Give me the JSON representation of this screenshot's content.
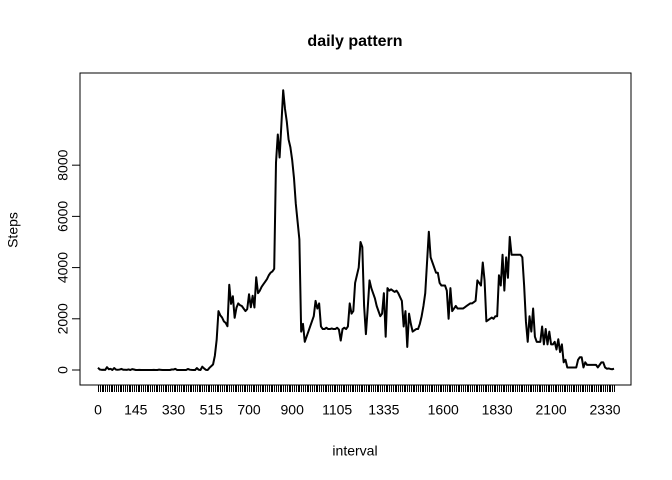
{
  "chart_data": {
    "type": "line",
    "title": "daily pattern",
    "x_label": "interval",
    "y_label": "Steps",
    "categories": [
      "0",
      null,
      null,
      null,
      null,
      null,
      null,
      null,
      null,
      null,
      null,
      null,
      null,
      null,
      null,
      null,
      null,
      null,
      null,
      null,
      null,
      "145",
      null,
      null,
      null,
      null,
      null,
      null,
      null,
      null,
      null,
      null,
      null,
      null,
      null,
      null,
      null,
      null,
      null,
      null,
      null,
      null,
      "330",
      null,
      null,
      null,
      null,
      null,
      null,
      null,
      null,
      null,
      null,
      null,
      null,
      null,
      null,
      null,
      null,
      null,
      null,
      null,
      null,
      "515",
      null,
      null,
      null,
      null,
      null,
      null,
      null,
      null,
      null,
      null,
      null,
      null,
      null,
      null,
      null,
      null,
      null,
      null,
      null,
      null,
      "700",
      null,
      null,
      null,
      null,
      null,
      null,
      null,
      null,
      null,
      null,
      null,
      null,
      null,
      null,
      null,
      null,
      null,
      null,
      null,
      null,
      null,
      null,
      null,
      "900",
      null,
      null,
      null,
      null,
      null,
      null,
      null,
      null,
      null,
      null,
      null,
      null,
      null,
      null,
      null,
      null,
      null,
      null,
      null,
      null,
      null,
      null,
      null,
      null,
      "1105",
      null,
      null,
      null,
      null,
      null,
      null,
      null,
      null,
      null,
      null,
      null,
      null,
      null,
      null,
      null,
      null,
      null,
      null,
      null,
      null,
      null,
      null,
      null,
      null,
      null,
      "1335",
      null,
      null,
      null,
      null,
      null,
      null,
      null,
      null,
      null,
      null,
      null,
      null,
      null,
      null,
      null,
      null,
      null,
      null,
      null,
      null,
      null,
      null,
      null,
      null,
      null,
      null,
      null,
      null,
      null,
      null,
      null,
      null,
      "1600",
      null,
      null,
      null,
      null,
      null,
      null,
      null,
      null,
      null,
      null,
      null,
      null,
      null,
      null,
      null,
      null,
      null,
      null,
      null,
      null,
      null,
      null,
      null,
      null,
      null,
      null,
      null,
      null,
      null,
      "1830",
      null,
      null,
      null,
      null,
      null,
      null,
      null,
      null,
      null,
      null,
      null,
      null,
      null,
      null,
      null,
      null,
      null,
      null,
      null,
      null,
      null,
      null,
      null,
      null,
      null,
      null,
      null,
      null,
      null,
      "2100",
      null,
      null,
      null,
      null,
      null,
      null,
      null,
      null,
      null,
      null,
      null,
      null,
      null,
      null,
      null,
      null,
      null,
      null,
      null,
      null,
      null,
      null,
      null,
      null,
      null,
      null,
      null,
      null,
      null,
      "2330",
      null,
      null,
      null,
      null,
      null
    ],
    "values": [
      91,
      18,
      7,
      8,
      4,
      111,
      28,
      46,
      0,
      78,
      16,
      7,
      17,
      43,
      12,
      9,
      5,
      22,
      0,
      33,
      20,
      0,
      0,
      3,
      0,
      0,
      0,
      0,
      0,
      0,
      0,
      4,
      0,
      0,
      15,
      7,
      0,
      0,
      0,
      0,
      0,
      20,
      18,
      44,
      0,
      0,
      0,
      0,
      0,
      0,
      40,
      12,
      5,
      0,
      0,
      74,
      8,
      0,
      130,
      60,
      7,
      0,
      85,
      150,
      220,
      560,
      1180,
      2300,
      2140,
      2050,
      1900,
      1840,
      1710,
      3330,
      2580,
      2880,
      2040,
      2430,
      2600,
      2530,
      2500,
      2400,
      2300,
      2380,
      2960,
      2450,
      2900,
      2440,
      3620,
      3000,
      3100,
      3250,
      3350,
      3450,
      3550,
      3700,
      3800,
      3850,
      3950,
      8100,
      9200,
      8300,
      9600,
      10927,
      10200,
      9700,
      9000,
      8700,
      8200,
      7500,
      6500,
      5800,
      5100,
      1500,
      1800,
      1100,
      1300,
      1500,
      1700,
      1900,
      2100,
      2700,
      2400,
      2600,
      1700,
      1600,
      1600,
      1650,
      1600,
      1600,
      1620,
      1600,
      1600,
      1650,
      1580,
      1150,
      1600,
      1650,
      1600,
      1700,
      2600,
      2200,
      2300,
      3400,
      3700,
      4000,
      5000,
      4800,
      2500,
      1400,
      2400,
      3500,
      3200,
      3000,
      2800,
      2500,
      2300,
      2100,
      2200,
      3000,
      1300,
      3200,
      3100,
      3150,
      3100,
      3050,
      3100,
      3000,
      2850,
      2700,
      1700,
      2300,
      900,
      2200,
      1800,
      1500,
      1550,
      1600,
      1600,
      1800,
      2100,
      2500,
      3000,
      4200,
      5400,
      4400,
      4200,
      4000,
      3800,
      3800,
      3400,
      3300,
      3300,
      3300,
      3100,
      2000,
      3200,
      2300,
      2400,
      2500,
      2400,
      2400,
      2400,
      2400,
      2450,
      2500,
      2550,
      2600,
      2600,
      2650,
      2700,
      3500,
      3400,
      3300,
      4200,
      3500,
      1900,
      1950,
      2000,
      2050,
      2000,
      2100,
      2100,
      3700,
      3300,
      4500,
      3100,
      4400,
      3600,
      5200,
      4500,
      4500,
      4500,
      4500,
      4500,
      4500,
      4400,
      3300,
      1900,
      1100,
      2100,
      1500,
      2400,
      1300,
      1100,
      1100,
      1100,
      1700,
      1000,
      1600,
      1000,
      1500,
      1000,
      1000,
      1100,
      800,
      1200,
      700,
      1000,
      300,
      400,
      100,
      100,
      100,
      100,
      100,
      100,
      400,
      500,
      500,
      100,
      300,
      200,
      200,
      200,
      200,
      200,
      200,
      100,
      200,
      300,
      300,
      100,
      50,
      60,
      40,
      30,
      50
    ],
    "color": "#000000",
    "ylim": [
      -586,
      11600
    ],
    "yticks": [
      0,
      2000,
      4000,
      6000,
      8000
    ]
  }
}
